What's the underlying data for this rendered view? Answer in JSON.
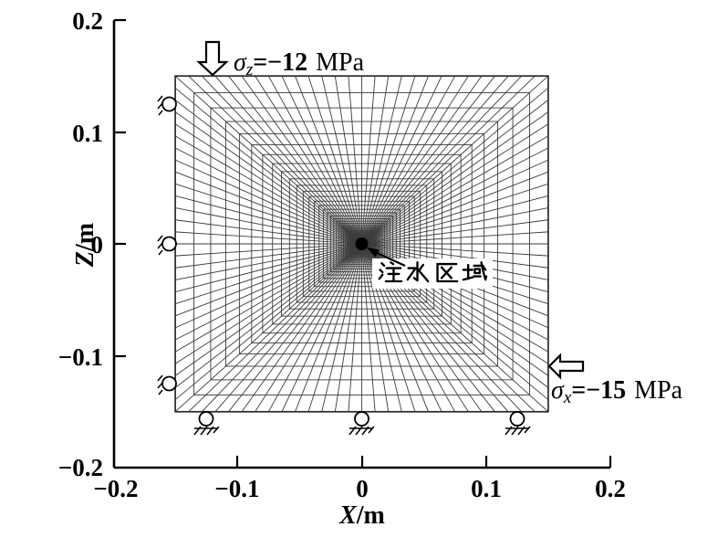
{
  "figure": {
    "type": "finite-element-mesh-model",
    "x_axis": {
      "label_var": "X",
      "label_unit": "/m",
      "ticks": [
        "−0.2",
        "−0.1",
        "0",
        "0.1",
        "0.2"
      ],
      "range": [
        -0.2,
        0.2
      ]
    },
    "z_axis": {
      "label_var": "Z",
      "label_unit": "/m",
      "ticks": [
        "0.2",
        "0.1",
        "0",
        "−0.1",
        "−0.2"
      ],
      "range": [
        -0.2,
        0.2
      ]
    },
    "loads": {
      "top": {
        "symbol": "σ",
        "subscript": "z",
        "equals_value": "=−12",
        "unit": "MPa"
      },
      "right": {
        "symbol": "σ",
        "subscript": "x",
        "equals_value": "=−15",
        "unit": "MPa"
      }
    },
    "injection": {
      "label": "注水区域"
    },
    "mesh": {
      "half_size_m": 0.15,
      "divisions_per_side": 28,
      "rings": 40,
      "grading_ratio": 0.9,
      "x_range": [
        -0.15,
        0.15
      ],
      "z_range": [
        -0.15,
        0.15
      ]
    },
    "supports": {
      "left_positions_m": [
        0.125,
        0,
        -0.125
      ],
      "bottom_positions_m": [
        -0.125,
        0,
        0.125
      ]
    },
    "colors": {
      "mesh_line": "#3c3c3c",
      "axis": "#000000",
      "background": "#ffffff"
    }
  }
}
